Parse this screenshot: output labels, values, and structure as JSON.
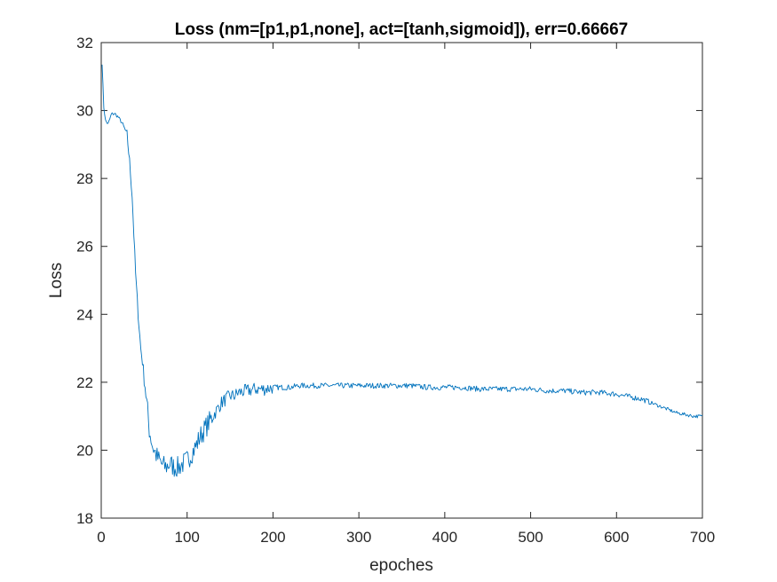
{
  "chart_data": {
    "type": "line",
    "title": "Loss (nm=[p1,p1,none], act=[tanh,sigmoid]), err=0.66667",
    "xlabel": "epoches",
    "ylabel": "Loss",
    "xlim": [
      0,
      700
    ],
    "ylim": [
      18,
      32
    ],
    "xticks": [
      0,
      100,
      200,
      300,
      400,
      500,
      600,
      700
    ],
    "yticks": [
      18,
      20,
      22,
      24,
      26,
      28,
      30,
      32
    ],
    "grid": false,
    "legend": "none",
    "line_color": "#0072BD",
    "series": [
      {
        "x": [
          1,
          3,
          5,
          8,
          12,
          16,
          20,
          25,
          30,
          33,
          36,
          40,
          43,
          46,
          50,
          53,
          56,
          60,
          65,
          70,
          75,
          80,
          85,
          90,
          95,
          100,
          105,
          110,
          115,
          120,
          125,
          130,
          135,
          140,
          145,
          150,
          155,
          160,
          170,
          180,
          190,
          200,
          210,
          220,
          230,
          240,
          250,
          260,
          270,
          280,
          300,
          320,
          340,
          360,
          380,
          400,
          420,
          440,
          460,
          480,
          500,
          520,
          540,
          560,
          580,
          600,
          610,
          620,
          630,
          640,
          650,
          660,
          670,
          680,
          690,
          700
        ],
        "y": [
          31.4,
          30.1,
          29.7,
          29.6,
          29.9,
          29.9,
          29.8,
          29.6,
          29.3,
          28.5,
          27.5,
          25.2,
          24.0,
          23.0,
          22.2,
          21.4,
          20.6,
          20.1,
          19.8,
          19.6,
          19.5,
          19.6,
          19.5,
          19.5,
          19.6,
          19.7,
          19.9,
          20.1,
          20.4,
          20.6,
          20.8,
          21.0,
          21.2,
          21.4,
          21.5,
          21.6,
          21.6,
          21.7,
          21.75,
          21.8,
          21.8,
          21.85,
          21.85,
          21.85,
          21.9,
          21.9,
          21.9,
          21.9,
          21.9,
          21.9,
          21.9,
          21.9,
          21.9,
          21.9,
          21.85,
          21.85,
          21.85,
          21.8,
          21.8,
          21.8,
          21.8,
          21.75,
          21.75,
          21.7,
          21.7,
          21.65,
          21.6,
          21.55,
          21.5,
          21.4,
          21.3,
          21.2,
          21.1,
          21.05,
          21.0,
          21.0
        ]
      }
    ]
  }
}
